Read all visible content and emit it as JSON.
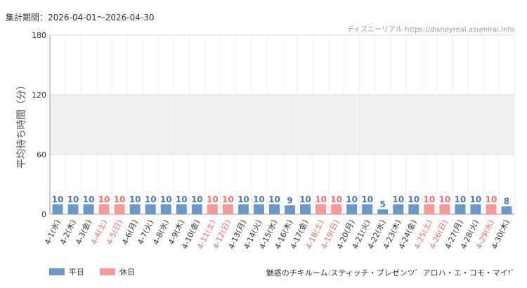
{
  "header": {
    "period_label": "集計期間：2026-04-01〜2026-04-30",
    "credit": "ディズニーリアル https://disneyreal.asumirai.info"
  },
  "footer": {
    "attraction_title": "魅惑のチキルーム:スティッチ・プレゼンツ゛アロハ・エ・コモ・マイ!゛"
  },
  "legend": {
    "weekday_label": "平日",
    "holiday_label": "休日"
  },
  "colors": {
    "weekday": "#6b98c8",
    "holiday": "#f79a9a",
    "weekday_value_text": "#4a78b0",
    "holiday_value_text": "#ee6d6d",
    "weekday_tick_text": "#333333",
    "holiday_tick_text": "#ee6d6d",
    "band": "#f0f0f0",
    "grid": "#dddddd"
  },
  "chart_data": {
    "type": "bar",
    "ylabel": "平均待ち時間（分）",
    "ylim": [
      0,
      180
    ],
    "yticks": [
      0,
      60,
      120,
      180
    ],
    "grid": true,
    "legend_position": "bottom-left",
    "categories": [
      "4-1(水)",
      "4-2(木)",
      "4-3(金)",
      "4-4(土)",
      "4-5(日)",
      "4-6(月)",
      "4-7(火)",
      "4-8(水)",
      "4-9(木)",
      "4-10(金)",
      "4-11(土)",
      "4-12(日)",
      "4-13(月)",
      "4-14(火)",
      "4-15(水)",
      "4-16(木)",
      "4-17(金)",
      "4-18(土)",
      "4-19(日)",
      "4-20(月)",
      "4-21(火)",
      "4-22(水)",
      "4-23(木)",
      "4-24(金)",
      "4-25(土)",
      "4-26(日)",
      "4-27(月)",
      "4-28(火)",
      "4-29(水)",
      "4-30(木)"
    ],
    "values": [
      10,
      10,
      10,
      10,
      10,
      10,
      10,
      10,
      10,
      10,
      10,
      10,
      10,
      10,
      10,
      9,
      10,
      10,
      10,
      10,
      10,
      5,
      10,
      10,
      10,
      10,
      10,
      10,
      10,
      8
    ],
    "day_type": [
      "weekday",
      "weekday",
      "weekday",
      "holiday",
      "holiday",
      "weekday",
      "weekday",
      "weekday",
      "weekday",
      "weekday",
      "holiday",
      "holiday",
      "weekday",
      "weekday",
      "weekday",
      "weekday",
      "weekday",
      "holiday",
      "holiday",
      "weekday",
      "weekday",
      "weekday",
      "weekday",
      "weekday",
      "holiday",
      "holiday",
      "weekday",
      "weekday",
      "holiday",
      "weekday"
    ]
  }
}
